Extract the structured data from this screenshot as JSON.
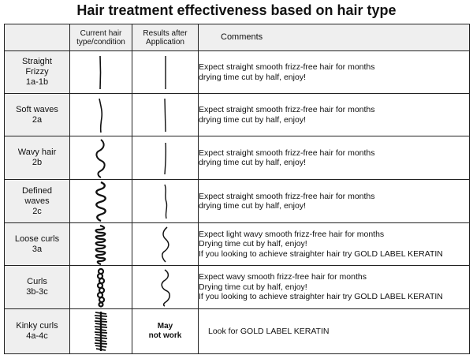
{
  "title": "Hair treatment effectiveness based on hair type",
  "columns": {
    "type": "",
    "current": "Current hair\ntype/condition",
    "results": "Results after\nApplication",
    "comments": "Comments"
  },
  "rows": [
    {
      "type": "Straight\nFrizzy\n1a-1b",
      "current_icon": "straight-strand-icon",
      "result_icon": "straight-strand-icon",
      "comments": [
        "Expect straight smooth frizz-free hair for months",
        "drying time cut by half, enjoy!"
      ]
    },
    {
      "type": "Soft waves\n2a",
      "current_icon": "soft-wave-strand-icon",
      "result_icon": "straight-strand-icon",
      "comments": [
        "Expect straight smooth frizz-free hair for months",
        "drying time cut by half, enjoy!"
      ]
    },
    {
      "type": "Wavy hair\n2b",
      "current_icon": "wavy-strand-icon",
      "result_icon": "straight-strand-icon",
      "comments": [
        "Expect straight smooth frizz-free hair for months",
        "drying time cut by half, enjoy!"
      ]
    },
    {
      "type": "Defined\nwaves\n2c",
      "current_icon": "defined-wave-strand-icon",
      "result_icon": "slight-wave-strand-icon",
      "comments": [
        "Expect straight smooth frizz-free hair for months",
        "drying time cut by half, enjoy!"
      ]
    },
    {
      "type": "Loose curls\n3a",
      "current_icon": "loose-curl-strand-icon",
      "result_icon": "wavy-strand-icon",
      "comments": [
        "Expect light wavy smooth frizz-free hair for months",
        "Drying time cut by half, enjoy!",
        "If you looking to achieve straighter hair try GOLD LABEL KERATIN"
      ]
    },
    {
      "type": "Curls\n3b-3c",
      "current_icon": "tight-curl-strand-icon",
      "result_icon": "wavy-strand-icon",
      "comments": [
        "Expect wavy smooth frizz-free hair for months",
        "Drying time cut by half, enjoy!",
        "If you looking to achieve straighter hair try GOLD LABEL KERATIN"
      ]
    },
    {
      "type": "Kinky curls\n4a-4c",
      "current_icon": "kinky-coil-strand-icon",
      "result_text": "May\nnot work",
      "comments": [
        "Look for GOLD LABEL KERATIN"
      ]
    }
  ]
}
